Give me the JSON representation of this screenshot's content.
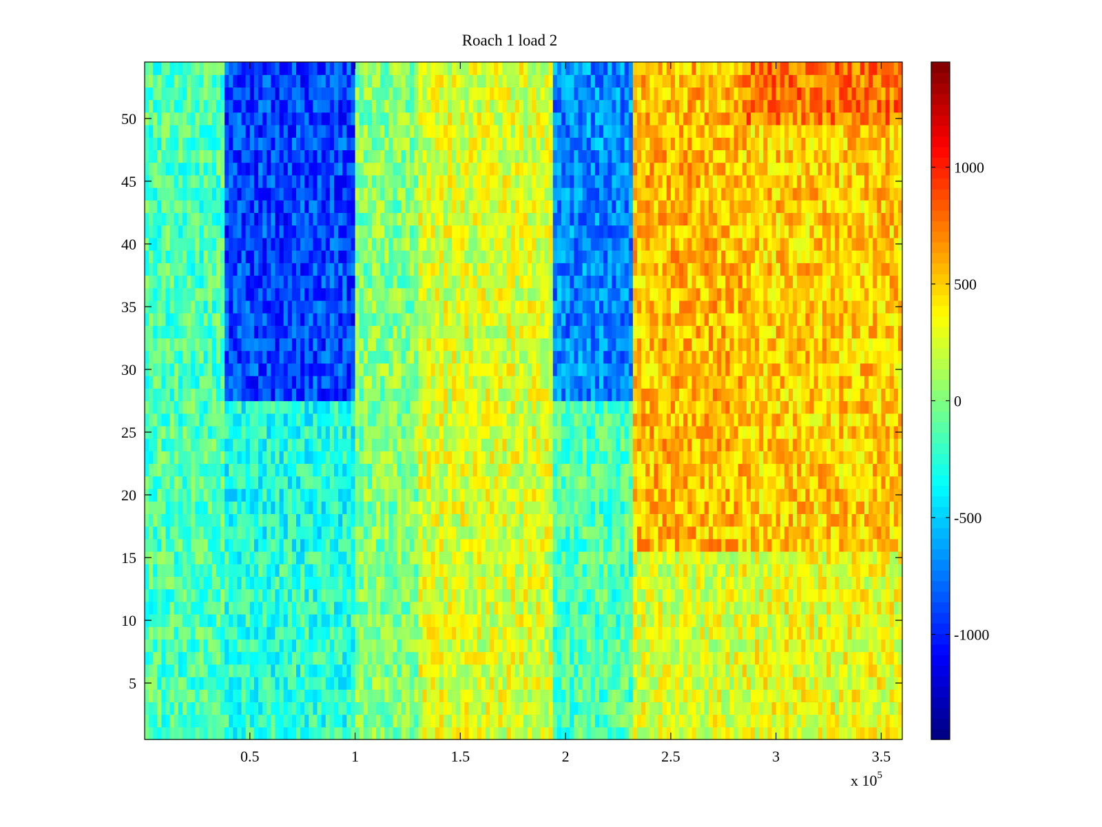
{
  "chart_data": {
    "type": "heatmap",
    "title": "Roach 1 load 2",
    "xlabel": "",
    "ylabel": "",
    "x_multiplier_label": {
      "base": "x 10",
      "exponent": "5"
    },
    "xlim": [
      0,
      3.6
    ],
    "ylim": [
      0.5,
      54.5
    ],
    "x_ticks": [
      0.5,
      1,
      1.5,
      2,
      2.5,
      3,
      3.5
    ],
    "x_tick_labels": [
      "0.5",
      "1",
      "1.5",
      "2",
      "2.5",
      "3",
      "3.5"
    ],
    "y_ticks": [
      5,
      10,
      15,
      20,
      25,
      30,
      35,
      40,
      45,
      50
    ],
    "y_tick_labels": [
      "5",
      "10",
      "15",
      "20",
      "25",
      "30",
      "35",
      "40",
      "45",
      "50"
    ],
    "rows": 54,
    "colormap": "jet",
    "clim": [
      -1450,
      1450
    ],
    "colorbar": {
      "ticks": [
        -1000,
        -500,
        0,
        500,
        1000
      ],
      "tick_labels": [
        "-1000",
        "-500",
        "0",
        "500",
        "1000"
      ]
    },
    "regions": [
      {
        "x_range": [
          0,
          0.38
        ],
        "y_range": [
          1,
          54
        ],
        "mean": -150
      },
      {
        "x_range": [
          0.38,
          1.0
        ],
        "y_range": [
          28,
          54
        ],
        "mean": -900
      },
      {
        "x_range": [
          0.38,
          1.0
        ],
        "y_range": [
          16,
          27
        ],
        "mean": -300
      },
      {
        "x_range": [
          0.38,
          1.0
        ],
        "y_range": [
          1,
          15
        ],
        "mean": -250
      },
      {
        "x_range": [
          1.0,
          1.3
        ],
        "y_range": [
          1,
          54
        ],
        "mean": 0
      },
      {
        "x_range": [
          1.3,
          1.95
        ],
        "y_range": [
          1,
          54
        ],
        "mean": 250
      },
      {
        "x_range": [
          1.95,
          2.33
        ],
        "y_range": [
          28,
          54
        ],
        "mean": -700
      },
      {
        "x_range": [
          1.95,
          2.33
        ],
        "y_range": [
          1,
          27
        ],
        "mean": -150
      },
      {
        "x_range": [
          2.33,
          2.85
        ],
        "y_range": [
          1,
          15
        ],
        "mean": 250
      },
      {
        "x_range": [
          2.33,
          2.85
        ],
        "y_range": [
          16,
          54
        ],
        "mean": 550
      },
      {
        "x_range": [
          2.85,
          3.6
        ],
        "y_range": [
          1,
          15
        ],
        "mean": 300
      },
      {
        "x_range": [
          2.85,
          3.6
        ],
        "y_range": [
          16,
          49
        ],
        "mean": 500
      },
      {
        "x_range": [
          2.85,
          3.6
        ],
        "y_range": [
          50,
          54
        ],
        "mean": 750
      }
    ]
  }
}
